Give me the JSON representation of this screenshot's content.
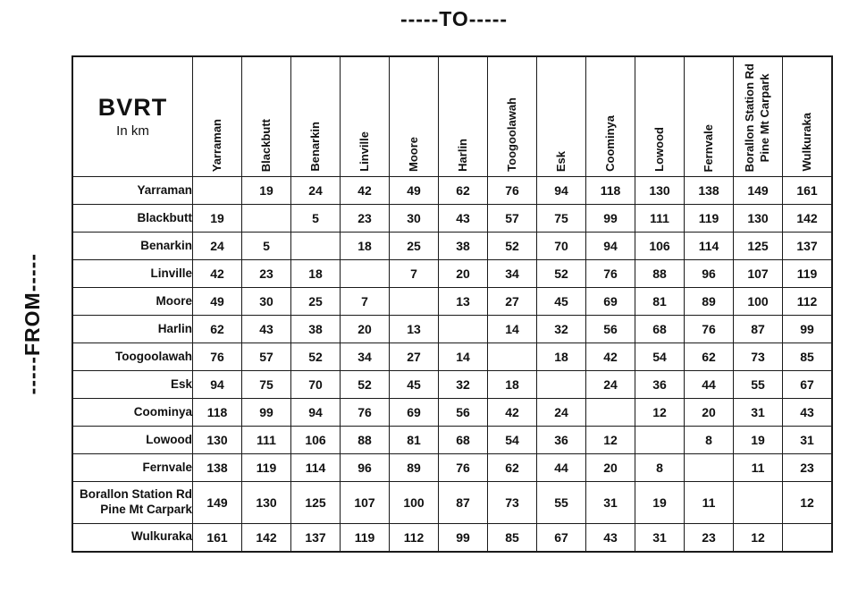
{
  "chart_data": {
    "type": "table",
    "title": "-----TO-----",
    "row_axis_label": "-----FROM-----",
    "corner": {
      "title": "BVRT",
      "subtitle": "In km"
    },
    "stations": [
      "Yarraman",
      "Blackbutt",
      "Benarkin",
      "Linville",
      "Moore",
      "Harlin",
      "Toogoolawah",
      "Esk",
      "Coominya",
      "Lowood",
      "Fernvale",
      "Borallon Station Rd\nPine Mt Carpark",
      "Wulkuraka"
    ],
    "matrix": [
      [
        null,
        19,
        24,
        42,
        49,
        62,
        76,
        94,
        118,
        130,
        138,
        149,
        161
      ],
      [
        19,
        null,
        5,
        23,
        30,
        43,
        57,
        75,
        99,
        111,
        119,
        130,
        142
      ],
      [
        24,
        5,
        null,
        18,
        25,
        38,
        52,
        70,
        94,
        106,
        114,
        125,
        137
      ],
      [
        42,
        23,
        18,
        null,
        7,
        20,
        34,
        52,
        76,
        88,
        96,
        107,
        119
      ],
      [
        49,
        30,
        25,
        7,
        null,
        13,
        27,
        45,
        69,
        81,
        89,
        100,
        112
      ],
      [
        62,
        43,
        38,
        20,
        13,
        null,
        14,
        32,
        56,
        68,
        76,
        87,
        99
      ],
      [
        76,
        57,
        52,
        34,
        27,
        14,
        null,
        18,
        42,
        54,
        62,
        73,
        85
      ],
      [
        94,
        75,
        70,
        52,
        45,
        32,
        18,
        null,
        24,
        36,
        44,
        55,
        67
      ],
      [
        118,
        99,
        94,
        76,
        69,
        56,
        42,
        24,
        null,
        12,
        20,
        31,
        43
      ],
      [
        130,
        111,
        106,
        88,
        81,
        68,
        54,
        36,
        12,
        null,
        8,
        19,
        31
      ],
      [
        138,
        119,
        114,
        96,
        89,
        76,
        62,
        44,
        20,
        8,
        null,
        11,
        23
      ],
      [
        149,
        130,
        125,
        107,
        100,
        87,
        73,
        55,
        31,
        19,
        11,
        null,
        12
      ],
      [
        161,
        142,
        137,
        119,
        112,
        99,
        85,
        67,
        43,
        31,
        23,
        12,
        null
      ]
    ],
    "colors": {
      "diagonal_fill": "#858585",
      "adjacent_fill": "#F8CBAD",
      "grid": "#1a1a1a",
      "background": "#FFFFFF"
    }
  }
}
